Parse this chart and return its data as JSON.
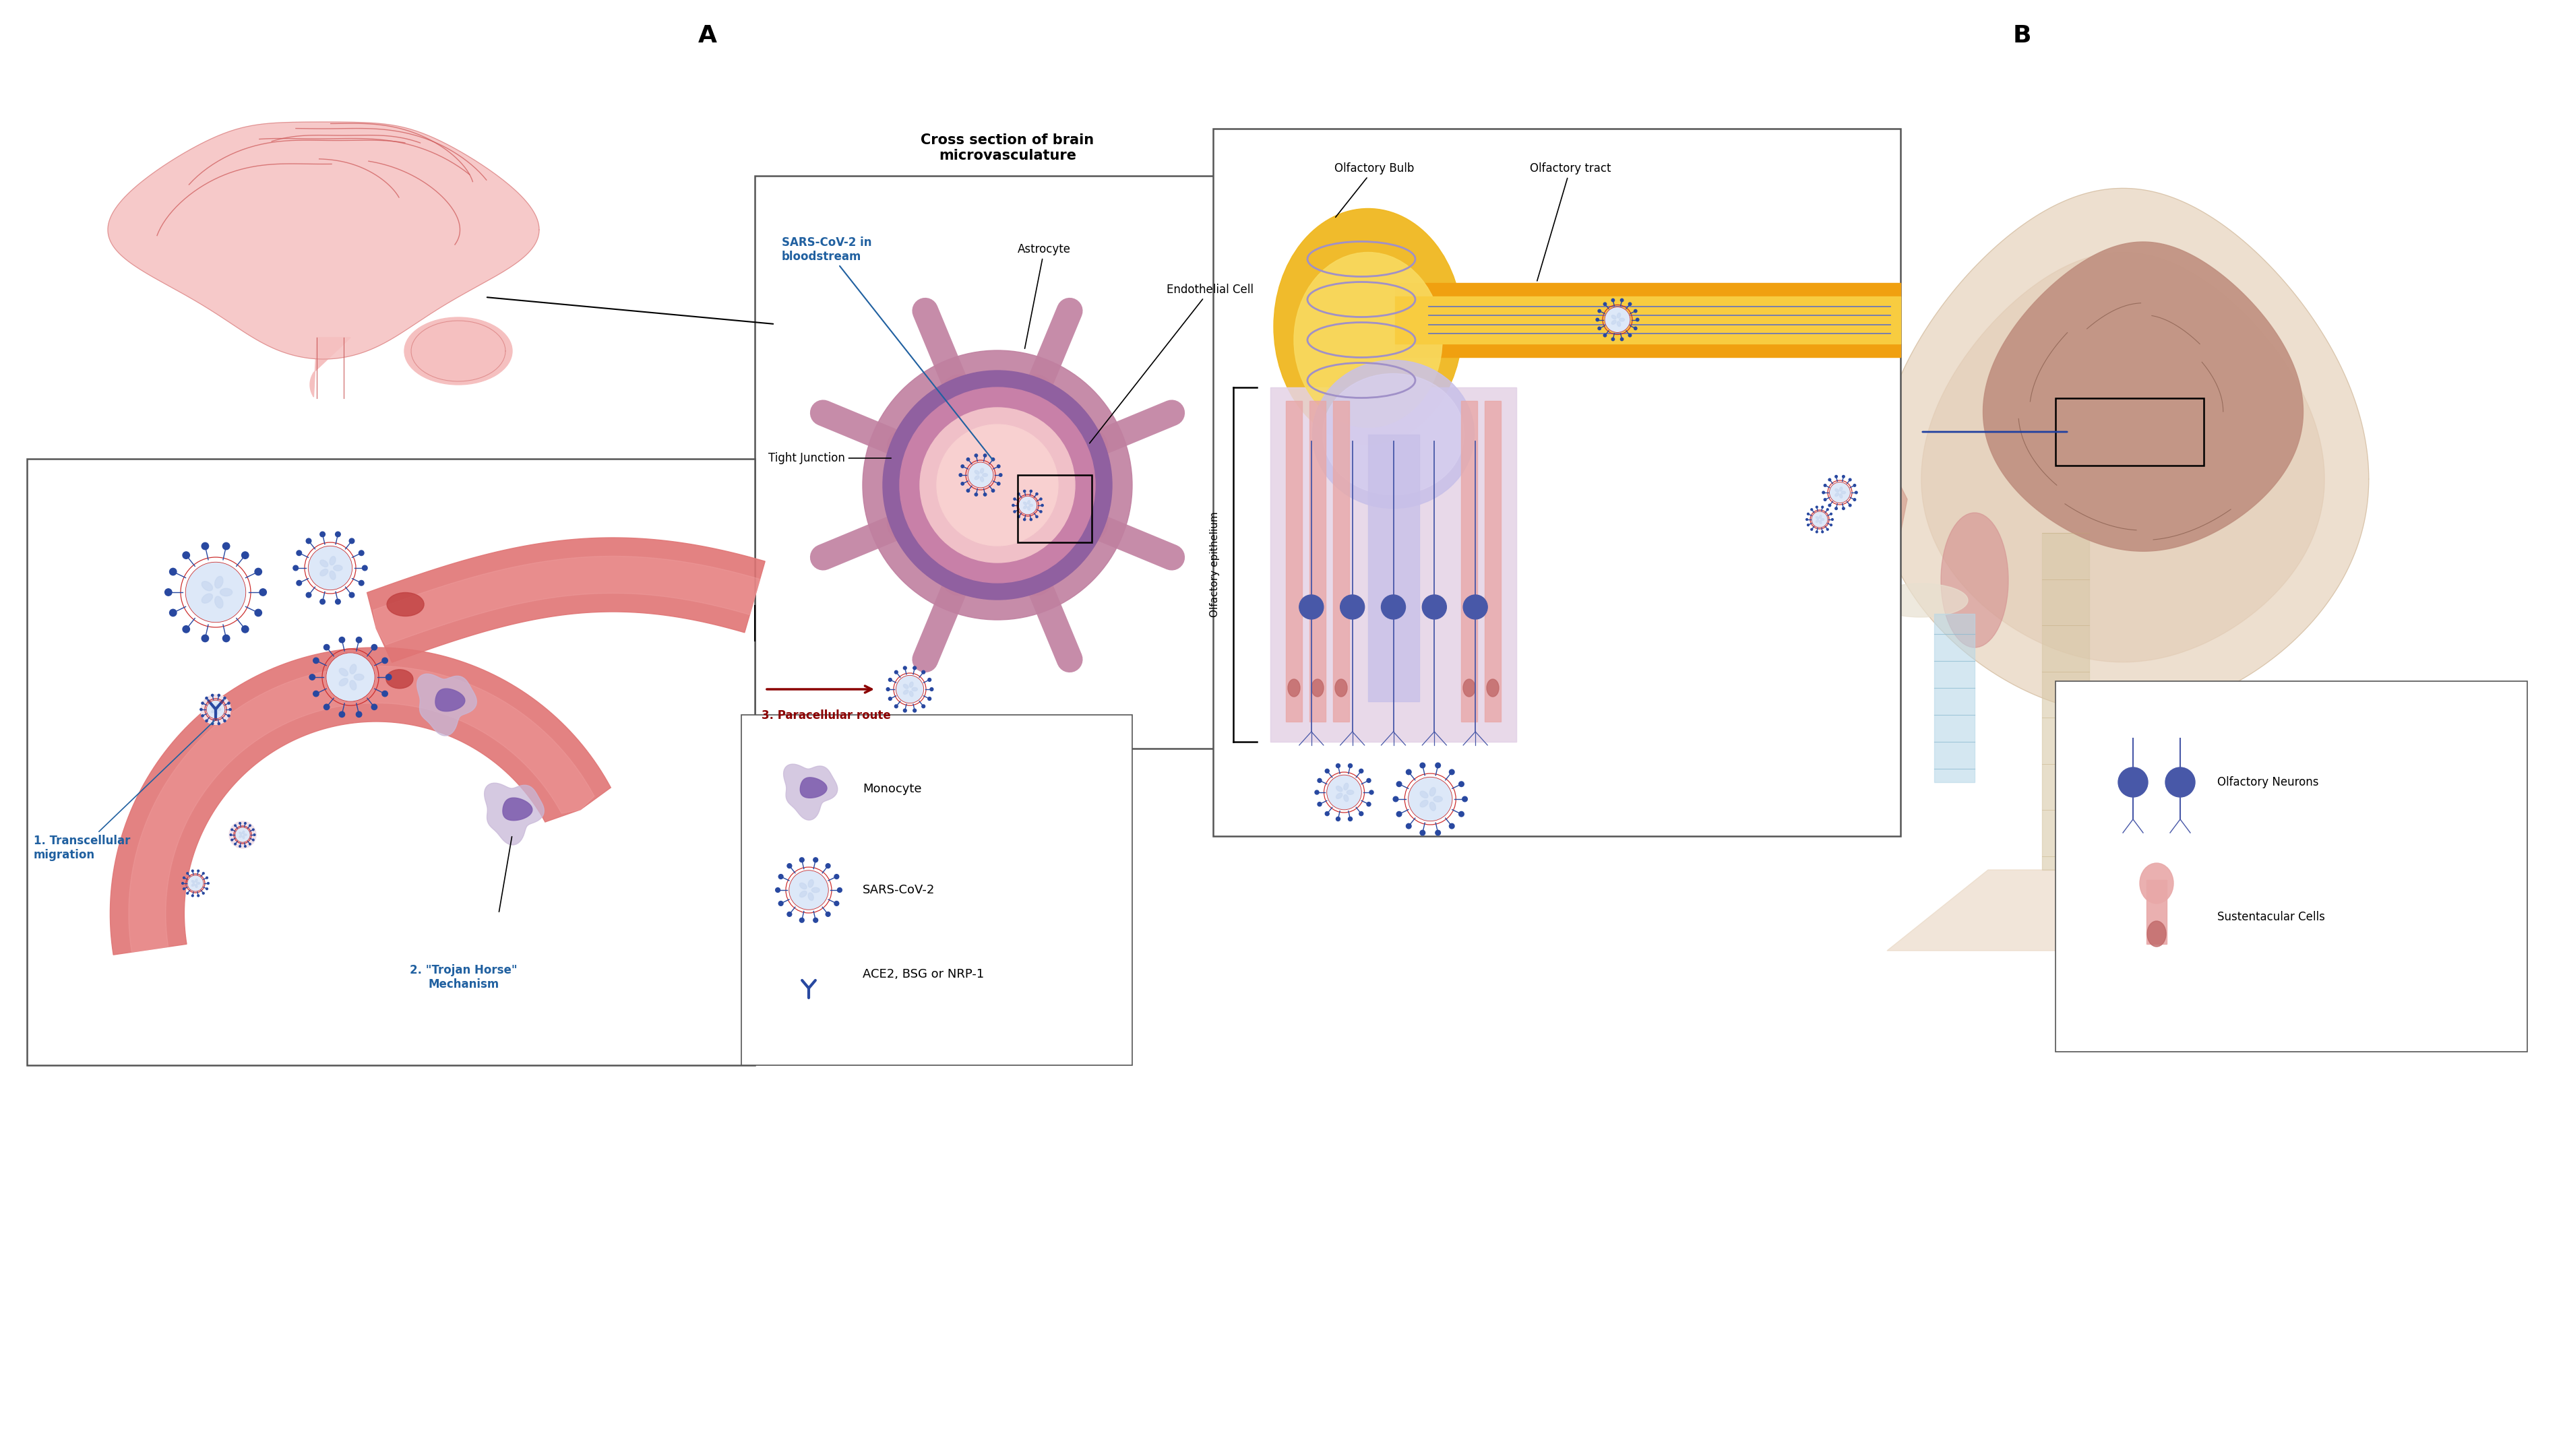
{
  "fig_width": 38.06,
  "fig_height": 21.61,
  "bg_color": "#ffffff",
  "panel_A_label": "A",
  "panel_B_label": "B",
  "label_fontsize": 26,
  "title_cross_section": "Cross section of brain\nmicrovasculature",
  "label_sars_cov2_bloodstream": "SARS-CoV-2 in\nbloodstream",
  "label_astrocyte": "Astrocyte",
  "label_tight_junction": "Tight Junction",
  "label_endothelial_cell": "Endothelial Cell",
  "label_transcellular": "1. Transcellular\nmigration",
  "label_trojan_horse": "2. \"Trojan Horse\"\nMechanism",
  "label_paracellular": "3. Paracellular route",
  "legend_monocyte": "Monocyte",
  "legend_sars": "SARS-CoV-2",
  "legend_ace2": "ACE2, BSG or NRP-1",
  "label_olfactory_bulb": "Olfactory Bulb",
  "label_olfactory_tract": "Olfactory tract",
  "label_olfactory_epithelium": "Olfactory epithelium",
  "legend_olfactory_neurons": "Olfactory Neurons",
  "legend_sustentacular": "Sustentacular Cells",
  "color_vessel_fill": "#e87878",
  "color_virus_fill": "#dde8f8",
  "color_virus_stroke": "#2848a0",
  "color_monocyte_outer": "#c8b8d8",
  "color_monocyte_inner": "#9070b0",
  "color_sars_label": "#2060a0",
  "color_transcellular_label": "#2060a0",
  "color_trojan_label": "#2060a0",
  "color_paracellular_label": "#8b0000",
  "color_paracellular_arrow": "#8b0000",
  "color_olfactory_bulb": "#f0c040",
  "color_olfactory_tract": "#f0a820",
  "annotation_fontsize": 13,
  "small_text_fontsize": 11
}
